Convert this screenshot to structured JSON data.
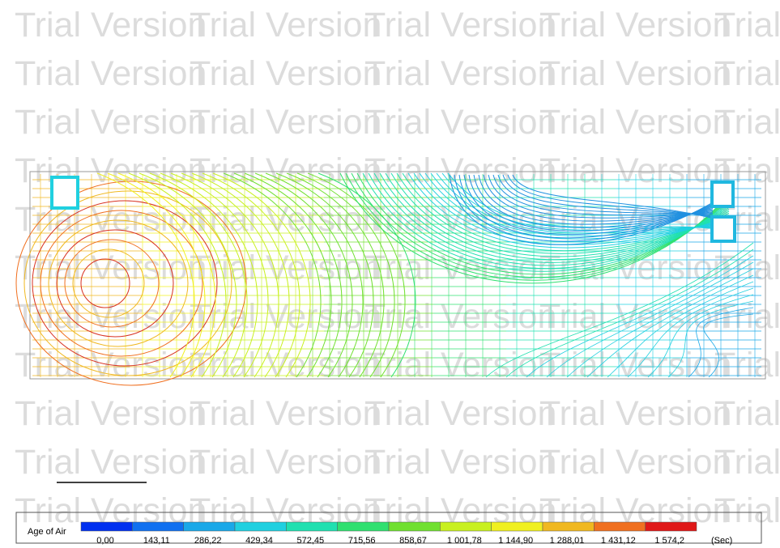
{
  "watermark": "Trial Version",
  "legend": {
    "title": "Age of Air",
    "unit": "(Sec)",
    "values": [
      "0,00",
      "143,11",
      "286,22",
      "429,34",
      "572,45",
      "715,56",
      "858,67",
      "1 001,78",
      "1 144,90",
      "1 288,01",
      "1 431,12",
      "1 574,2"
    ],
    "colors": [
      "#0030f0",
      "#1070f0",
      "#1aa8e8",
      "#20d0e0",
      "#20e0b0",
      "#30e070",
      "#70e030",
      "#c8f020",
      "#f0f020",
      "#f0b820",
      "#f07020",
      "#e01818"
    ]
  }
}
